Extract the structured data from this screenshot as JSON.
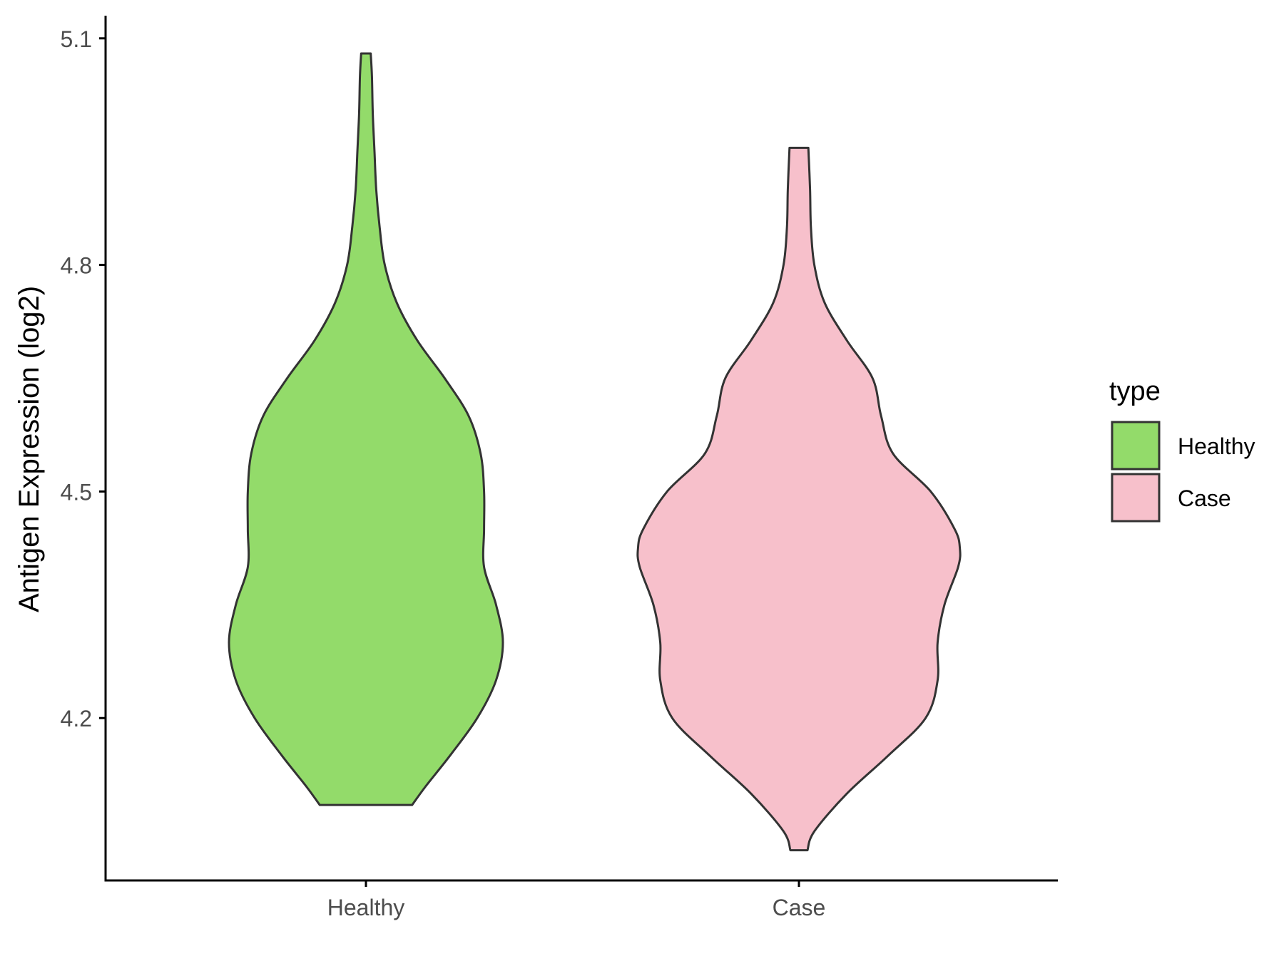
{
  "chart_data": {
    "type": "violin",
    "ylabel": "Antigen Expression (log2)",
    "xlabel": "",
    "categories": [
      "Healthy",
      "Case"
    ],
    "yticks": [
      4.2,
      4.5,
      4.8,
      5.1
    ],
    "ylim": [
      3.985,
      5.13
    ],
    "legend": {
      "title": "type",
      "position": "right",
      "items": [
        {
          "label": "Healthy",
          "color": "#93DB6A"
        },
        {
          "label": "Case",
          "color": "#F7C0CB"
        }
      ]
    },
    "series": [
      {
        "name": "Healthy",
        "color": "#93DB6A",
        "min": 4.085,
        "max": 5.08,
        "profile": [
          [
            4.085,
            0.27
          ],
          [
            4.11,
            0.35
          ],
          [
            4.15,
            0.49
          ],
          [
            4.2,
            0.65
          ],
          [
            4.25,
            0.76
          ],
          [
            4.3,
            0.8
          ],
          [
            4.35,
            0.76
          ],
          [
            4.4,
            0.69
          ],
          [
            4.45,
            0.69
          ],
          [
            4.5,
            0.69
          ],
          [
            4.55,
            0.67
          ],
          [
            4.6,
            0.6
          ],
          [
            4.65,
            0.46
          ],
          [
            4.7,
            0.3
          ],
          [
            4.75,
            0.18
          ],
          [
            4.8,
            0.11
          ],
          [
            4.85,
            0.08
          ],
          [
            4.9,
            0.06
          ],
          [
            4.95,
            0.05
          ],
          [
            5.0,
            0.04
          ],
          [
            5.05,
            0.035
          ],
          [
            5.08,
            0.028
          ]
        ]
      },
      {
        "name": "Case",
        "color": "#F7C0CB",
        "min": 4.025,
        "max": 4.955,
        "profile": [
          [
            4.025,
            0.05
          ],
          [
            4.05,
            0.09
          ],
          [
            4.1,
            0.28
          ],
          [
            4.15,
            0.52
          ],
          [
            4.2,
            0.74
          ],
          [
            4.25,
            0.81
          ],
          [
            4.3,
            0.81
          ],
          [
            4.35,
            0.85
          ],
          [
            4.4,
            0.93
          ],
          [
            4.425,
            0.94
          ],
          [
            4.45,
            0.91
          ],
          [
            4.5,
            0.77
          ],
          [
            4.55,
            0.55
          ],
          [
            4.6,
            0.48
          ],
          [
            4.65,
            0.43
          ],
          [
            4.7,
            0.28
          ],
          [
            4.75,
            0.15
          ],
          [
            4.8,
            0.09
          ],
          [
            4.85,
            0.07
          ],
          [
            4.9,
            0.065
          ],
          [
            4.955,
            0.055
          ]
        ]
      }
    ]
  }
}
